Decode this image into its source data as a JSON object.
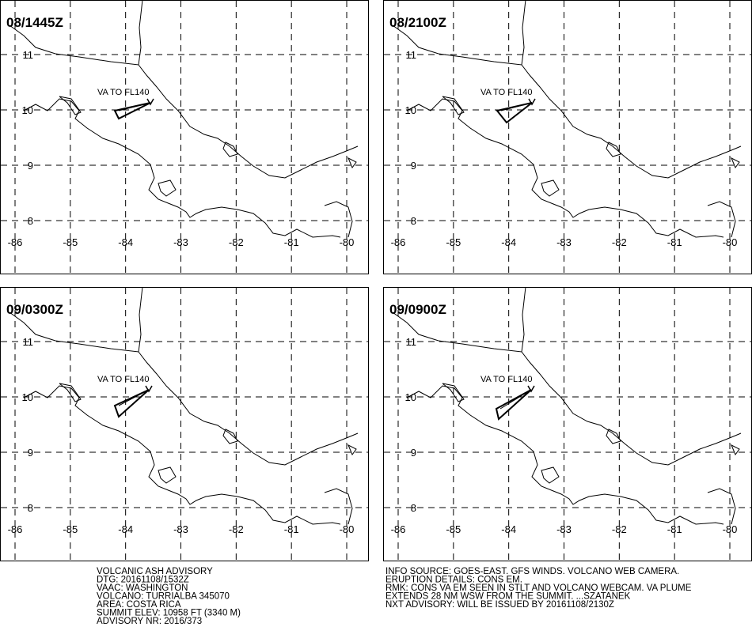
{
  "panels": [
    {
      "title": "08/1445Z",
      "annotation": "VA TO FL140"
    },
    {
      "title": "08/2100Z",
      "annotation": "VA TO FL140"
    },
    {
      "title": "09/0300Z",
      "annotation": "VA TO FL140"
    },
    {
      "title": "09/0900Z",
      "annotation": "VA TO FL140"
    }
  ],
  "lon_ticks": [
    -86,
    -85,
    -84,
    -83,
    -82,
    -81,
    -80
  ],
  "lat_ticks": [
    11,
    10,
    9,
    8
  ],
  "advisory_left": [
    "VOLCANIC ASH ADVISORY",
    "DTG: 20161108/1532Z",
    "VAAC: WASHINGTON",
    "VOLCANO: TURRIALBA 345070",
    "AREA: COSTA RICA",
    "SUMMIT ELEV: 10958 FT (3340 M)",
    "ADVISORY NR: 2016/373"
  ],
  "advisory_right": [
    "INFO SOURCE: GOES-EAST. GFS WINDS. VOLCANO WEB CAMERA.",
    "ERUPTION DETAILS: CONS EM.",
    "RMK: CONS VA EM SEEN IN STLT AND VOLCANO WEBCAM. VA PLUME",
    "EXTENDS 28 NM WSW FROM THE SUMMIT. ...SZATANEK",
    "NXT ADVISORY: WILL BE ISSUED BY 20161108/2130Z"
  ]
}
